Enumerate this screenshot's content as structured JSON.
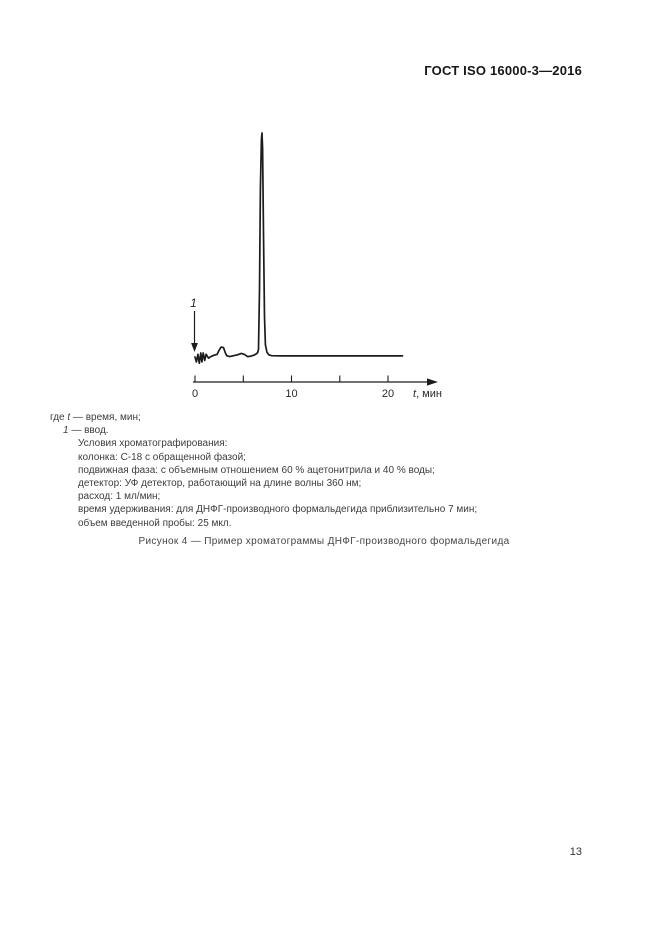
{
  "page": {
    "header": "ГОСТ ISO 16000-3—2016",
    "page_number": "13"
  },
  "figure": {
    "where_line": {
      "prefix": "где ",
      "var": "t",
      "suffix": " — время, мин;"
    },
    "legend_item": {
      "num": "1",
      "suffix": " — ввод."
    },
    "conditions": [
      "Условия хроматографирования:",
      "колонка: С-18 с обращенной фазой;",
      "подвижная фаза: с объемным отношением 60 % ацетонитрила и 40 % воды;",
      "детектор: УФ детектор, работающий на длине волны 360 нм;",
      "расход: 1 мл/мин;",
      "время удерживания: для ДНФГ-производного формальдегида приблизительно 7 мин;",
      "объем введенной пробы: 25 мкл."
    ],
    "caption": "Рисунок  4 — Пример хроматограммы ДНФГ-производного формальдегида"
  },
  "chart_data": {
    "type": "line",
    "title": "",
    "xlabel_var": "t",
    "xlabel_rest": ", мин",
    "ylabel": "",
    "x_range": [
      0,
      22.5
    ],
    "grid": false,
    "x_ticks": [
      {
        "t": 0,
        "label": "0"
      },
      {
        "t": 5,
        "label": ""
      },
      {
        "t": 10,
        "label": "10"
      },
      {
        "t": 15,
        "label": ""
      },
      {
        "t": 20,
        "label": "20"
      }
    ],
    "annotation": {
      "label": "1",
      "t": 0
    },
    "peak": {
      "t": 7,
      "v": 1.0
    },
    "line_color": "#1c1c1c",
    "points": [
      [
        0.0,
        0.0
      ],
      [
        0.15,
        -0.022
      ],
      [
        0.3,
        0.012
      ],
      [
        0.45,
        -0.028
      ],
      [
        0.6,
        0.018
      ],
      [
        0.72,
        -0.022
      ],
      [
        0.85,
        0.018
      ],
      [
        1.0,
        -0.015
      ],
      [
        1.15,
        0.012
      ],
      [
        1.4,
        -0.005
      ],
      [
        1.7,
        0.003
      ],
      [
        2.0,
        0.008
      ],
      [
        2.3,
        0.012
      ],
      [
        2.5,
        0.03
      ],
      [
        2.7,
        0.044
      ],
      [
        2.95,
        0.042
      ],
      [
        3.15,
        0.018
      ],
      [
        3.3,
        0.006
      ],
      [
        3.6,
        0.002
      ],
      [
        4.0,
        0.006
      ],
      [
        4.4,
        0.01
      ],
      [
        4.8,
        0.016
      ],
      [
        5.1,
        0.012
      ],
      [
        5.45,
        0.002
      ],
      [
        5.8,
        0.004
      ],
      [
        6.1,
        0.008
      ],
      [
        6.35,
        0.014
      ],
      [
        6.5,
        0.02
      ],
      [
        6.58,
        0.035
      ],
      [
        6.68,
        0.3
      ],
      [
        6.78,
        0.75
      ],
      [
        6.88,
        0.97
      ],
      [
        6.94,
        1.0
      ],
      [
        7.0,
        0.93
      ],
      [
        7.1,
        0.55
      ],
      [
        7.2,
        0.18
      ],
      [
        7.3,
        0.055
      ],
      [
        7.45,
        0.022
      ],
      [
        7.65,
        0.01
      ],
      [
        7.95,
        0.006
      ],
      [
        9.0,
        0.005
      ],
      [
        12.0,
        0.005
      ],
      [
        16.0,
        0.005
      ],
      [
        21.5,
        0.005
      ]
    ]
  }
}
